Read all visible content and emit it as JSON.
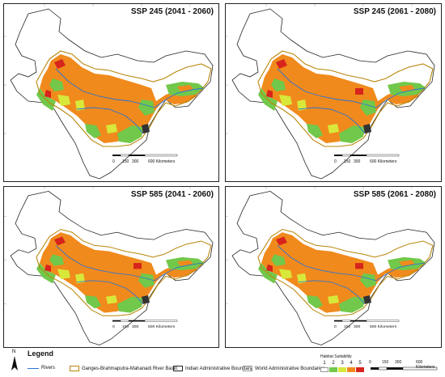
{
  "panels": [
    {
      "title": "SSP 245 (2041 - 2060)",
      "scale": {
        "ticks": [
          "0",
          "150",
          "300",
          "600 Kilometers"
        ]
      }
    },
    {
      "title": "SSP 245 (2061 - 2080)",
      "scale": {
        "ticks": [
          "0",
          "150",
          "300",
          "600 Kilometers"
        ]
      }
    },
    {
      "title": "SSP 585 (2041 - 2060)",
      "scale": {
        "ticks": [
          "0",
          "150",
          "300",
          "600 Kilometers"
        ]
      }
    },
    {
      "title": "SSP 585 (2061 - 2080)",
      "scale": {
        "ticks": [
          "0",
          "150",
          "300",
          "600 Kilometers"
        ]
      }
    }
  ],
  "legend": {
    "title": "Legend",
    "north": "N",
    "items": [
      {
        "label": "Rivers",
        "kind": "line",
        "color": "#2a73d6"
      },
      {
        "label": "Ganges-Brahmaputra-Mahanadi River Basin",
        "kind": "box",
        "color": "#b8860b"
      },
      {
        "label": "Indian Administrative Boundary",
        "kind": "box",
        "color": "#222222"
      },
      {
        "label": "World Administrative Boundaries",
        "kind": "box",
        "color": "#cccccc"
      }
    ],
    "habitat": {
      "title": "Habitat Suitability",
      "classes": [
        {
          "label": "1",
          "color": "#ffffff"
        },
        {
          "label": "2",
          "color": "#72c84a"
        },
        {
          "label": "3",
          "color": "#d8e83a"
        },
        {
          "label": "4",
          "color": "#f08a1c"
        },
        {
          "label": "5",
          "color": "#d7241c"
        }
      ]
    },
    "scale": {
      "ticks": [
        "0",
        "150",
        "300",
        "600 Kilometers"
      ]
    }
  },
  "colors": {
    "basin": "#b8860b",
    "river": "#2a73d6",
    "boundary": "#222222",
    "class1": "#ffffff",
    "class2": "#72c84a",
    "class3": "#d8e83a",
    "class4": "#f08a1c",
    "class5": "#d7241c"
  }
}
